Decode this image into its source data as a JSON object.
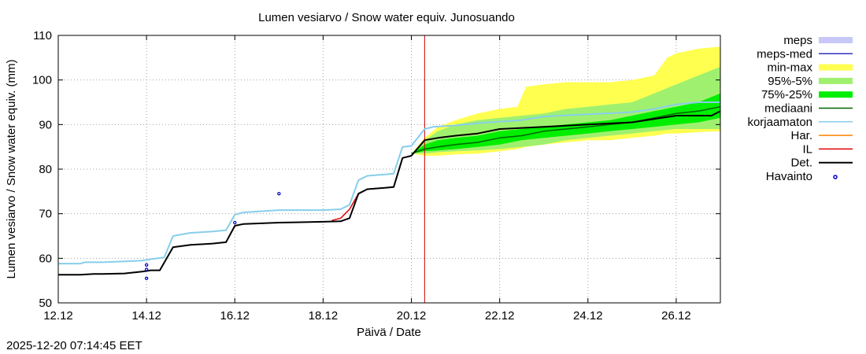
{
  "chart_data": {
    "type": "line",
    "title": "Lumen vesiarvo / Snow water equiv.  Junosuando",
    "xlabel": "Päivä / Date",
    "ylabel": "Lumen vesiarvo / Snow water equiv. (mm)",
    "xlim": [
      0,
      15
    ],
    "ylim": [
      50,
      110
    ],
    "xticks": [
      {
        "x": 0,
        "label": "12.12"
      },
      {
        "x": 2,
        "label": "14.12"
      },
      {
        "x": 4,
        "label": "16.12"
      },
      {
        "x": 6,
        "label": "18.12"
      },
      {
        "x": 8,
        "label": "20.12"
      },
      {
        "x": 10,
        "label": "22.12"
      },
      {
        "x": 12,
        "label": "24.12"
      },
      {
        "x": 14,
        "label": "26.12"
      }
    ],
    "yticks": [
      50,
      60,
      70,
      80,
      90,
      100,
      110
    ],
    "grid": true,
    "forecast_start": 8.3,
    "colors": {
      "meps": "#c8c8f8",
      "meps_med": "#3030c0",
      "minmax": "#ffff50",
      "p95_5": "#a0f070",
      "p75_25": "#00ee00",
      "mediaani": "#006400",
      "korjaamaton": "#87ceeb",
      "har": "#ff8000",
      "il": "#e00000",
      "det": "#000000",
      "havainto": "#0000cc"
    },
    "legend": [
      {
        "key": "meps",
        "label": "meps",
        "style": "band"
      },
      {
        "key": "meps_med",
        "label": "meps-med",
        "style": "line"
      },
      {
        "key": "minmax",
        "label": "min-max",
        "style": "band"
      },
      {
        "key": "p95_5",
        "label": "95%-5%",
        "style": "band"
      },
      {
        "key": "p75_25",
        "label": "75%-25%",
        "style": "band"
      },
      {
        "key": "mediaani",
        "label": "mediaani",
        "style": "line"
      },
      {
        "key": "korjaamaton",
        "label": "korjaamaton",
        "style": "line"
      },
      {
        "key": "har",
        "label": "Har.",
        "style": "line"
      },
      {
        "key": "il",
        "label": "IL",
        "style": "line"
      },
      {
        "key": "det",
        "label": "Det.",
        "style": "line"
      },
      {
        "key": "havainto",
        "label": "Havainto",
        "style": "point"
      }
    ],
    "series": [
      {
        "name": "korjaamaton",
        "x": [
          0,
          0.5,
          0.6,
          1.0,
          1.5,
          1.9,
          2.1,
          2.4,
          2.6,
          3.0,
          3.5,
          3.8,
          4.0,
          4.2,
          5.0,
          6.0,
          6.4,
          6.6,
          6.8,
          7.0,
          7.4,
          7.6,
          7.8,
          8.0,
          8.3,
          8.5,
          9.0,
          9.5,
          10.5,
          11.0,
          12.0,
          13.0,
          13.5,
          14.0,
          14.5,
          15.0
        ],
        "y": [
          58.8,
          58.8,
          59.1,
          59.1,
          59.3,
          59.5,
          59.8,
          60.2,
          65.0,
          65.7,
          66.0,
          66.3,
          69.8,
          70.3,
          70.8,
          70.8,
          71.0,
          72.0,
          77.5,
          78.5,
          78.8,
          79.0,
          85.0,
          85.2,
          89.0,
          89.5,
          89.8,
          90.3,
          91.0,
          91.8,
          92.3,
          92.8,
          93.5,
          94.5,
          95.0,
          95.0
        ]
      },
      {
        "name": "det",
        "x": [
          0,
          0.5,
          0.8,
          1.0,
          1.5,
          1.9,
          2.1,
          2.3,
          2.6,
          3.0,
          3.5,
          3.8,
          4.0,
          4.2,
          5.0,
          6.0,
          6.4,
          6.6,
          6.8,
          7.0,
          7.4,
          7.6,
          7.8,
          8.0,
          8.3,
          8.6,
          9.0,
          9.5,
          10.0,
          11.0,
          12.0,
          13.0,
          14.0,
          14.8,
          15.0
        ],
        "y": [
          56.3,
          56.3,
          56.5,
          56.5,
          56.6,
          57.0,
          57.3,
          57.3,
          62.5,
          63.0,
          63.3,
          63.6,
          67.3,
          67.7,
          68.0,
          68.2,
          68.3,
          69.0,
          74.5,
          75.5,
          75.8,
          76.0,
          82.5,
          83.0,
          86.5,
          87.0,
          87.5,
          88.0,
          89.0,
          89.5,
          90.0,
          90.5,
          92.0,
          92.0,
          93.0
        ]
      },
      {
        "name": "mediaani",
        "x": [
          8.0,
          8.3,
          8.6,
          9.0,
          9.5,
          10.0,
          10.5,
          11.0,
          11.5,
          12.0,
          12.5,
          13.0,
          13.5,
          14.0,
          14.5,
          15.0
        ],
        "y": [
          83.5,
          84.5,
          85.0,
          85.5,
          86.0,
          87.0,
          87.5,
          88.5,
          89.0,
          89.5,
          90.0,
          90.5,
          91.5,
          92.5,
          93.0,
          94.0
        ]
      },
      {
        "name": "il",
        "x": [
          6.2,
          6.4,
          6.6,
          6.8,
          7.0,
          7.4,
          7.6,
          7.8
        ],
        "y": [
          68.5,
          69.0,
          71.0,
          74.5,
          75.5,
          75.8,
          76.0,
          82.5
        ]
      },
      {
        "name": "havainto",
        "x": [
          2.0,
          2.0,
          2.0,
          4.0,
          5.0
        ],
        "y": [
          55.5,
          57.5,
          58.5,
          68.0,
          74.5
        ]
      }
    ],
    "bands": [
      {
        "name": "min-max",
        "x": [
          8.0,
          8.3,
          8.6,
          9.0,
          9.5,
          10.0,
          10.4,
          10.6,
          11.0,
          11.5,
          12.0,
          12.5,
          13.0,
          13.5,
          13.8,
          14.0,
          14.5,
          15.0
        ],
        "upper": [
          83.5,
          87.0,
          89.5,
          91.0,
          92.5,
          93.5,
          94.0,
          98.5,
          99.0,
          99.5,
          99.5,
          99.5,
          100.0,
          101.0,
          105.0,
          106.0,
          107.0,
          107.5
        ],
        "lower": [
          83.5,
          83.0,
          83.0,
          83.3,
          83.5,
          84.0,
          84.5,
          85.0,
          85.5,
          86.0,
          86.5,
          86.5,
          87.0,
          87.5,
          88.0,
          88.0,
          88.3,
          88.5
        ]
      },
      {
        "name": "95%-5%",
        "x": [
          8.0,
          8.3,
          8.6,
          9.0,
          9.5,
          10.0,
          10.5,
          11.0,
          11.5,
          12.0,
          12.5,
          13.0,
          13.5,
          14.0,
          14.5,
          15.0
        ],
        "upper": [
          83.5,
          86.5,
          88.5,
          90.0,
          91.0,
          91.5,
          92.0,
          92.5,
          93.5,
          94.0,
          94.5,
          95.0,
          97.0,
          99.0,
          101.0,
          103.0
        ],
        "lower": [
          83.5,
          83.5,
          83.8,
          84.0,
          84.2,
          84.5,
          85.0,
          85.5,
          86.5,
          87.0,
          87.5,
          88.0,
          88.5,
          89.0,
          89.0,
          89.0
        ]
      },
      {
        "name": "75%-25%",
        "x": [
          8.0,
          8.3,
          8.6,
          9.0,
          9.5,
          10.0,
          10.5,
          11.0,
          11.5,
          12.0,
          12.5,
          13.0,
          13.5,
          14.0,
          14.5,
          15.0
        ],
        "upper": [
          83.5,
          85.5,
          86.5,
          87.0,
          87.5,
          88.5,
          89.0,
          89.5,
          90.0,
          90.5,
          91.0,
          92.0,
          93.0,
          94.0,
          95.0,
          97.0
        ],
        "lower": [
          83.5,
          84.0,
          84.2,
          84.5,
          85.0,
          85.5,
          86.5,
          87.0,
          87.5,
          88.0,
          88.5,
          89.0,
          89.5,
          90.0,
          90.5,
          91.5
        ]
      }
    ]
  },
  "timestamp": "2025-12-20 07:14:45 EET"
}
